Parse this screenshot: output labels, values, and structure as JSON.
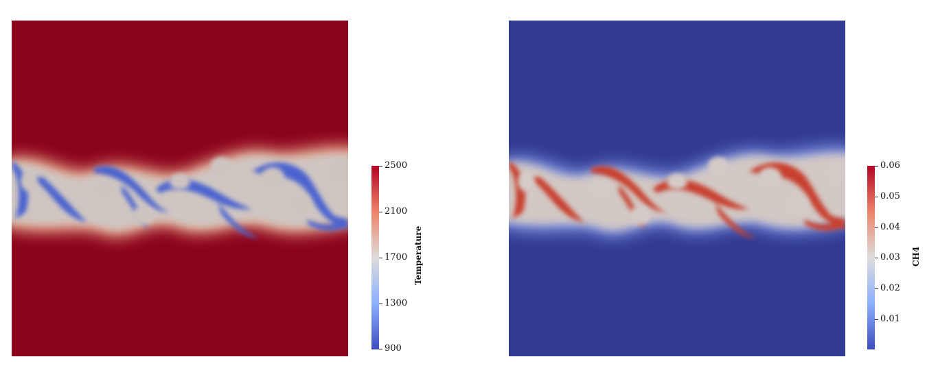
{
  "colors": {
    "map_low": "#3b4cc0",
    "map_mid": "#dddcdc",
    "map_high": "#b40426",
    "temp_background": "#8c031c",
    "ch4_background": "#313b92"
  },
  "temperature": {
    "title": "Temperature",
    "ticks": [
      "2500",
      "2100",
      "1700",
      "1300",
      "900"
    ],
    "range": [
      900,
      2500
    ]
  },
  "ch4": {
    "title": "CH4",
    "ticks": [
      "0.06",
      "0.05",
      "0.04",
      "0.03",
      "0.02",
      "0.01"
    ],
    "range": [
      0,
      0.06
    ]
  }
}
